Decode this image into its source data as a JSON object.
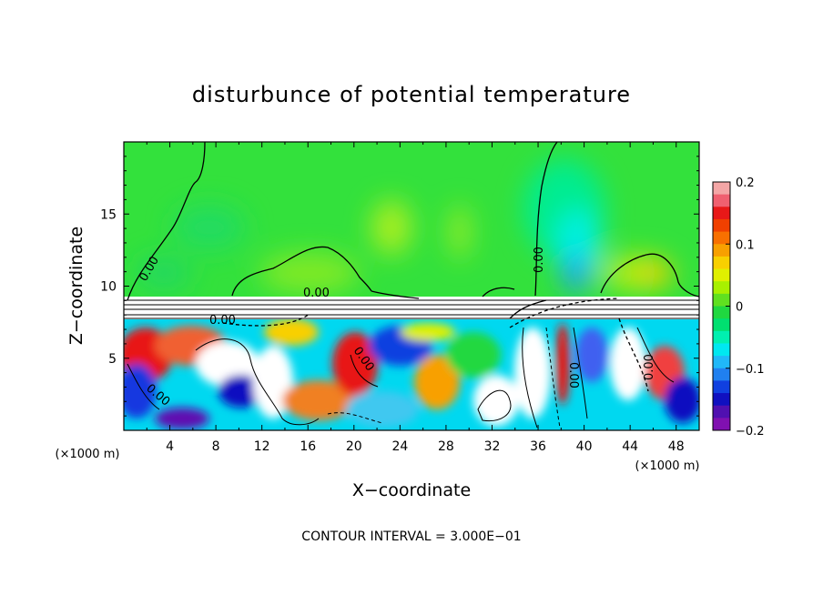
{
  "chart_data": {
    "type": "heatmap",
    "title": "disturbunce of potential temperature",
    "xlabel": "X−coordinate",
    "ylabel": "Z−coordinate",
    "x_unit": "(×1000 m)",
    "x_unit_right": "(×1000 m)",
    "xlim": [
      0,
      50
    ],
    "ylim": [
      0,
      20
    ],
    "x_ticks": [
      4,
      8,
      12,
      16,
      20,
      24,
      28,
      32,
      36,
      40,
      44,
      48
    ],
    "x_tick_labels": [
      "4",
      "8",
      "12",
      "16",
      "20",
      "24",
      "28",
      "32",
      "36",
      "40",
      "44",
      "48"
    ],
    "y_ticks": [
      5,
      10,
      15
    ],
    "y_tick_labels": [
      "5",
      "10",
      "15"
    ],
    "colorbar": {
      "min": -0.2,
      "max": 0.2,
      "ticks": [
        0.2,
        0.1,
        0,
        -0.1,
        -0.2
      ],
      "tick_labels": [
        "0.2",
        "0.1",
        "0",
        "−0.1",
        "−0.2"
      ],
      "colors": [
        "#f4a6a6",
        "#f06070",
        "#e81818",
        "#f04000",
        "#f87000",
        "#f8a000",
        "#f8d000",
        "#e0f000",
        "#a8f000",
        "#60e020",
        "#20d840",
        "#00e070",
        "#00f0b0",
        "#00e8f0",
        "#20b8f8",
        "#2080f0",
        "#1040e0",
        "#1010c0",
        "#5010b0",
        "#8010b0"
      ]
    },
    "contour_labels": [
      "0.00",
      "0.00",
      "0.00",
      "0.00",
      "0.00",
      "0.00",
      "0.00",
      "0.00"
    ],
    "footer": "CONTOUR INTERVAL = 3.000E−01"
  }
}
